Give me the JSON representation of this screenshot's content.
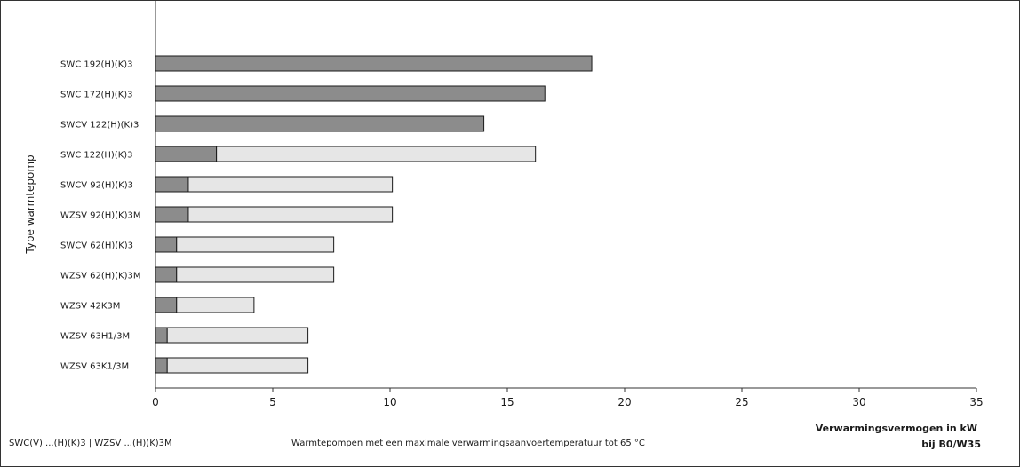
{
  "colors": {
    "base_bar": "#8c8c8c",
    "extra_bar": "#e6e6e6",
    "bar_stroke": "#1a1a1a",
    "axis": "#333333"
  },
  "legend": {
    "line1": "SWC(V) ...(H)(K)3 | WZSV    ...(H)(K)3M",
    "note": "Warmtepompen met een maximale verwarmingsaanvoertemperatuur tot 65 °C"
  },
  "chart_data": {
    "type": "bar",
    "orientation": "horizontal",
    "stacked": true,
    "ylabel": "Type warmtepomp",
    "xlabel_line1": "Verwarmingsvermogen in kW",
    "xlabel_line2": "bij B0/W35",
    "xlim": [
      0,
      35
    ],
    "xticks": [
      0,
      5,
      10,
      15,
      20,
      25,
      30,
      35
    ],
    "grid": false,
    "categories": [
      "SWC 192(H)(K)3",
      "SWC 172(H)(K)3",
      "SWCV 122(H)(K)3",
      "SWC 122(H)(K)3",
      "SWCV 92(H)(K)3",
      "WZSV 92(H)(K)3M",
      "SWCV 62(H)(K)3",
      "WZSV 62(H)(K)3M",
      "WZSV 42K3M",
      "WZSV 63H1/3M",
      "WZSV 63K1/3M"
    ],
    "series": [
      {
        "values": [
          18.6,
          16.6,
          14.0,
          2.6,
          1.4,
          1.4,
          0.9,
          0.9,
          0.9,
          0.5,
          0.5
        ]
      },
      {
        "values": [
          0,
          0,
          0,
          13.6,
          8.7,
          8.7,
          6.7,
          6.7,
          3.3,
          6.0,
          6.0
        ]
      }
    ]
  }
}
